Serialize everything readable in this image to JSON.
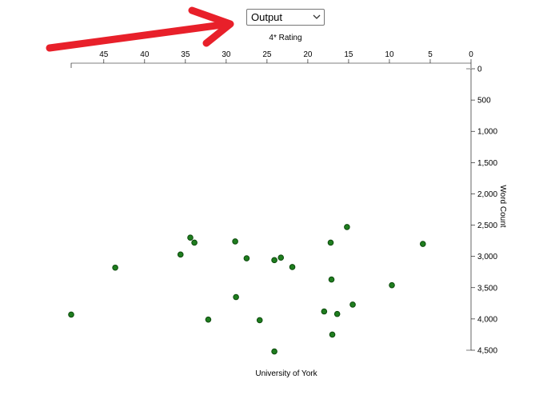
{
  "select": {
    "value": "Output",
    "icon": "chevron-down-icon"
  },
  "annotation": {
    "icon": "red-arrow-icon",
    "color": "#e8202a"
  },
  "chart_data": {
    "type": "scatter",
    "title": "",
    "xlabel": "4* Rating",
    "ylabel": "Word Count",
    "footer_label": "University of York",
    "xlim": [
      49,
      0
    ],
    "ylim": [
      0,
      4500
    ],
    "x_ticks": [
      45,
      40,
      35,
      30,
      25,
      20,
      15,
      10,
      5,
      0
    ],
    "y_ticks": [
      0,
      500,
      1000,
      1500,
      2000,
      2500,
      3000,
      3500,
      4000,
      4500
    ],
    "y_tick_labels": [
      "0",
      "500",
      "1,000",
      "1,500",
      "2,000",
      "2,500",
      "3,000",
      "3,500",
      "4,000",
      "4,500"
    ],
    "point_color": "#1e7d1e",
    "point_stroke": "#0d4a0d",
    "x_axis_position": "top",
    "y_axis_position": "right",
    "grid": false,
    "points": [
      {
        "x": 15.2,
        "y": 2530
      },
      {
        "x": 34.4,
        "y": 2700
      },
      {
        "x": 28.9,
        "y": 2760
      },
      {
        "x": 17.2,
        "y": 2780
      },
      {
        "x": 33.9,
        "y": 2780
      },
      {
        "x": 5.9,
        "y": 2800
      },
      {
        "x": 35.6,
        "y": 2970
      },
      {
        "x": 27.5,
        "y": 3030
      },
      {
        "x": 23.3,
        "y": 3020
      },
      {
        "x": 24.1,
        "y": 3060
      },
      {
        "x": 21.9,
        "y": 3170
      },
      {
        "x": 43.6,
        "y": 3180
      },
      {
        "x": 17.1,
        "y": 3370
      },
      {
        "x": 9.7,
        "y": 3460
      },
      {
        "x": 28.8,
        "y": 3650
      },
      {
        "x": 14.5,
        "y": 3770
      },
      {
        "x": 18.0,
        "y": 3880
      },
      {
        "x": 49.0,
        "y": 3930
      },
      {
        "x": 16.4,
        "y": 3920
      },
      {
        "x": 32.2,
        "y": 4010
      },
      {
        "x": 25.9,
        "y": 4020
      },
      {
        "x": 17.0,
        "y": 4250
      },
      {
        "x": 24.1,
        "y": 4520
      }
    ]
  }
}
